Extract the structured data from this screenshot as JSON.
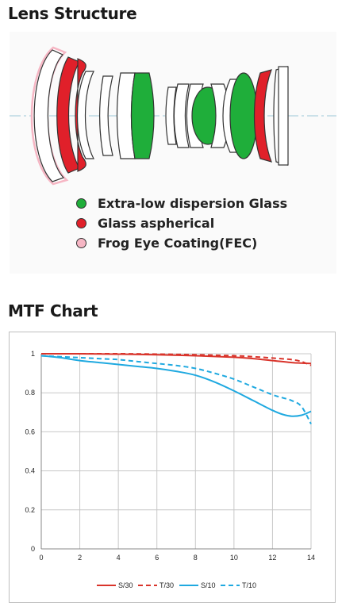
{
  "lens": {
    "title": "Lens Structure",
    "legend": [
      {
        "label": "Extra-low dispersion Glass",
        "color": "#1fae3a"
      },
      {
        "label": "Glass aspherical",
        "color": "#e0202a"
      },
      {
        "label": "Frog Eye Coating(FEC)",
        "color": "#f6b6c4"
      }
    ],
    "colors": {
      "ed": "#1fae3a",
      "asph": "#e0202a",
      "fec": "#f6b6c4",
      "outline": "#333333"
    }
  },
  "mtf": {
    "title": "MTF Chart"
  },
  "chart_data": {
    "type": "line",
    "title": "",
    "xlabel": "",
    "ylabel": "",
    "xlim": [
      0,
      14
    ],
    "ylim": [
      0,
      1
    ],
    "xticks": [
      0,
      2,
      4,
      6,
      8,
      10,
      12,
      14
    ],
    "yticks": [
      0,
      0.2,
      0.4,
      0.6,
      0.8,
      1
    ],
    "ytick_labels": [
      "0",
      "0.2",
      "0.4",
      "0.6",
      "0.8",
      "1"
    ],
    "grid": true,
    "legend_position": "bottom",
    "series": [
      {
        "name": "S/30",
        "color": "#d9342b",
        "dash": false,
        "x": [
          0,
          2,
          4,
          6,
          8,
          10,
          11,
          12,
          13,
          13.5,
          14
        ],
        "y": [
          1,
          1,
          0.998,
          0.995,
          0.99,
          0.982,
          0.975,
          0.965,
          0.955,
          0.952,
          0.95
        ]
      },
      {
        "name": "T/30",
        "color": "#d9342b",
        "dash": true,
        "x": [
          0,
          2,
          4,
          6,
          8,
          10,
          11,
          12,
          13,
          13.5,
          14
        ],
        "y": [
          1,
          1,
          1,
          0.998,
          0.995,
          0.99,
          0.985,
          0.978,
          0.97,
          0.96,
          0.94
        ]
      },
      {
        "name": "S/10",
        "color": "#1fa9e0",
        "dash": false,
        "x": [
          0,
          1,
          2,
          3,
          4,
          5,
          6,
          7,
          8,
          9,
          10,
          11,
          12,
          12.5,
          13,
          13.5,
          14
        ],
        "y": [
          0.99,
          0.98,
          0.965,
          0.955,
          0.945,
          0.935,
          0.925,
          0.91,
          0.89,
          0.855,
          0.81,
          0.76,
          0.71,
          0.69,
          0.68,
          0.685,
          0.705
        ]
      },
      {
        "name": "T/10",
        "color": "#1fa9e0",
        "dash": true,
        "x": [
          0,
          1,
          2,
          3,
          4,
          5,
          6,
          7,
          8,
          9,
          10,
          11,
          12,
          12.5,
          13,
          13.5,
          14
        ],
        "y": [
          0.99,
          0.985,
          0.98,
          0.975,
          0.97,
          0.96,
          0.95,
          0.94,
          0.925,
          0.9,
          0.87,
          0.83,
          0.79,
          0.775,
          0.76,
          0.73,
          0.64
        ]
      }
    ]
  }
}
